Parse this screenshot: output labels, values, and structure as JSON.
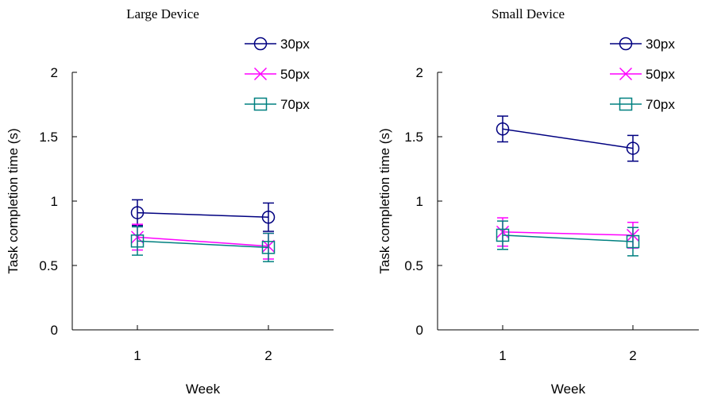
{
  "chart_data": [
    {
      "type": "line",
      "title": "Large Device",
      "xlabel": "Week",
      "ylabel": "Task completion time (s)",
      "categories": [
        "1",
        "2"
      ],
      "ylim": [
        0,
        2
      ],
      "yticks": [
        "0",
        "0.5",
        "1",
        "1.5",
        "2"
      ],
      "grid": false,
      "legend_position": "top-right",
      "series": [
        {
          "name": "30px",
          "color": "#000080",
          "marker": "circle",
          "values": [
            0.91,
            0.875
          ],
          "errors": [
            0.1,
            0.11
          ]
        },
        {
          "name": "50px",
          "color": "#ff00ff",
          "marker": "x",
          "values": [
            0.72,
            0.65
          ],
          "errors": [
            0.1,
            0.1
          ]
        },
        {
          "name": "70px",
          "color": "#008080",
          "marker": "square",
          "values": [
            0.69,
            0.64
          ],
          "errors": [
            0.11,
            0.11
          ]
        }
      ]
    },
    {
      "type": "line",
      "title": "Small Device",
      "xlabel": "Week",
      "ylabel": "Task completion time (s)",
      "categories": [
        "1",
        "2"
      ],
      "ylim": [
        0,
        2
      ],
      "yticks": [
        "0",
        "0.5",
        "1",
        "1.5",
        "2"
      ],
      "grid": false,
      "legend_position": "top-right",
      "series": [
        {
          "name": "30px",
          "color": "#000080",
          "marker": "circle",
          "values": [
            1.56,
            1.41
          ],
          "errors": [
            0.1,
            0.1
          ]
        },
        {
          "name": "50px",
          "color": "#ff00ff",
          "marker": "x",
          "values": [
            0.76,
            0.735
          ],
          "errors": [
            0.11,
            0.1
          ]
        },
        {
          "name": "70px",
          "color": "#008080",
          "marker": "square",
          "values": [
            0.735,
            0.685
          ],
          "errors": [
            0.11,
            0.11
          ]
        }
      ]
    }
  ]
}
